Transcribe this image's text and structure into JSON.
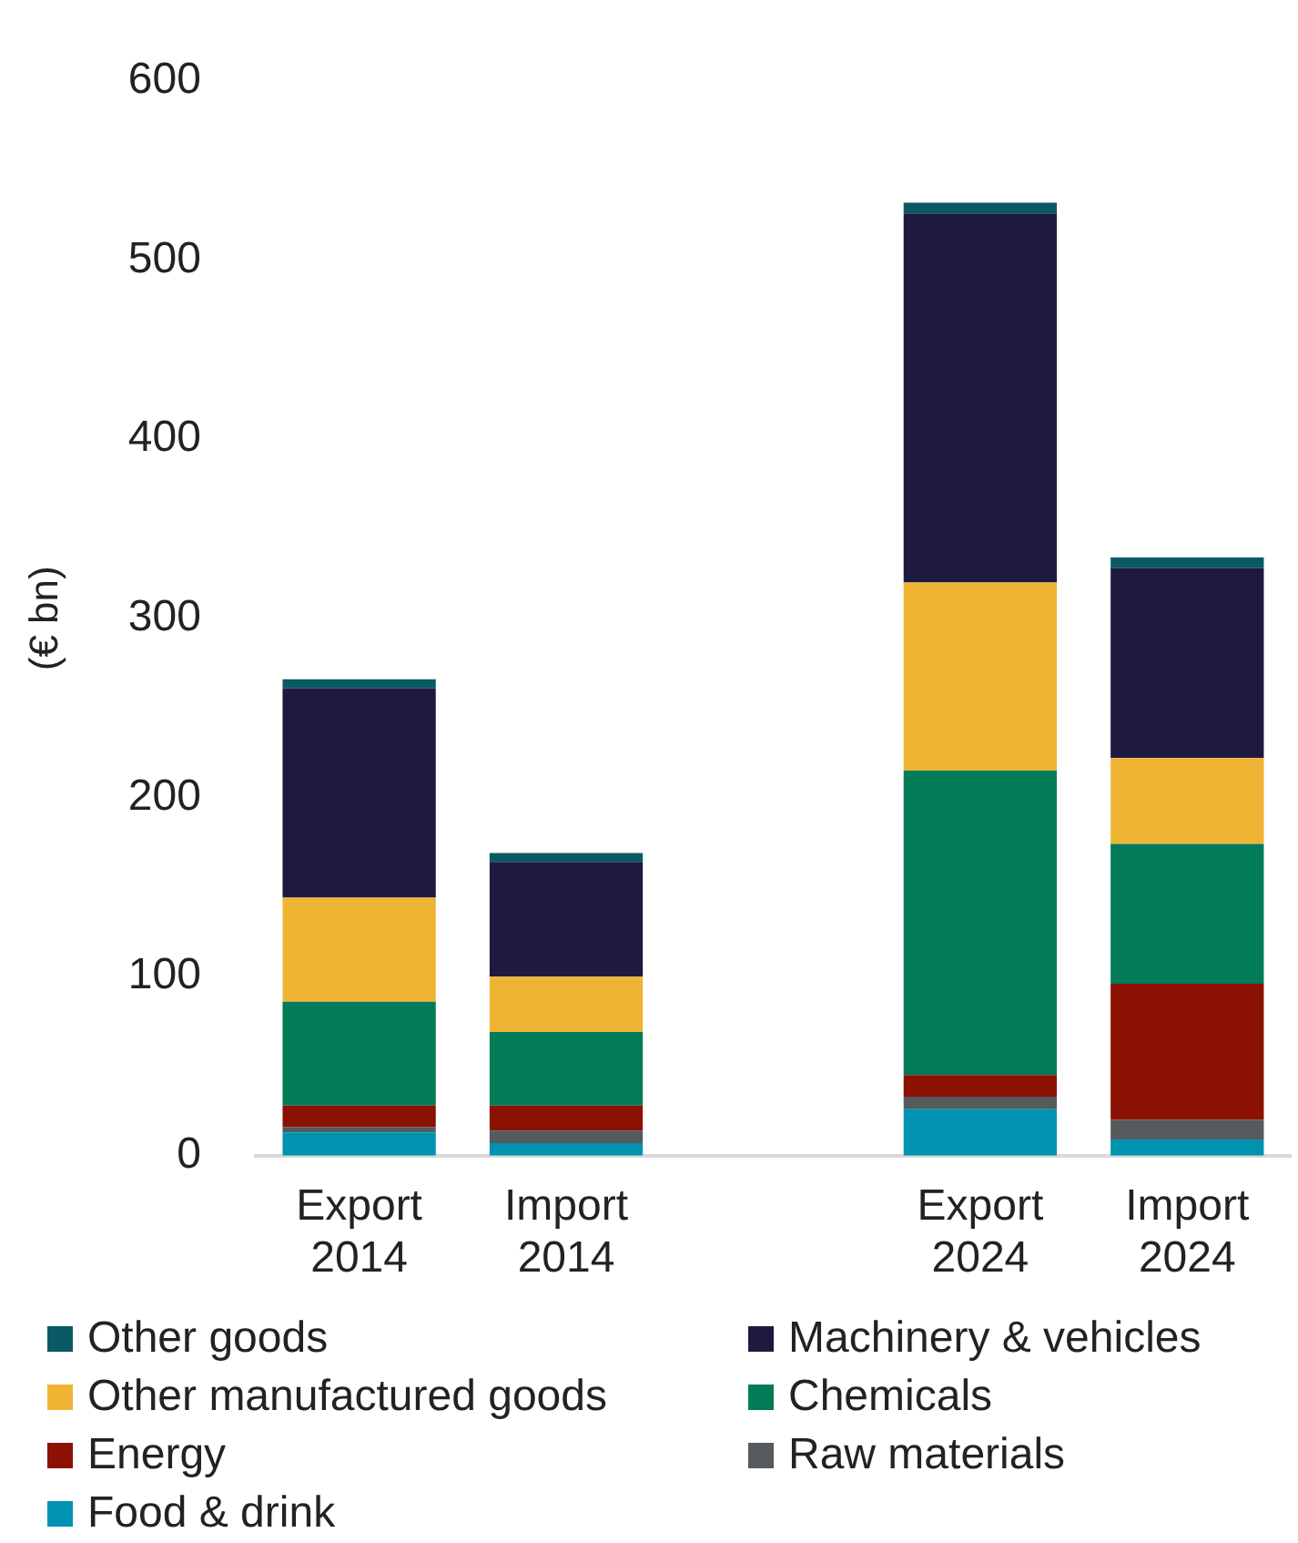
{
  "chart_data": {
    "type": "bar",
    "stacked": true,
    "ylabel": "(€ bn)",
    "categories": [
      "Export 2014",
      "Import 2014",
      null,
      "Export 2024",
      "Import 2024"
    ],
    "ylim": [
      0,
      600
    ],
    "yticks": [
      0,
      100,
      200,
      300,
      400,
      500,
      600
    ],
    "grid": false,
    "legend": "bottom",
    "series": [
      {
        "name": "Food & drink",
        "color": "#0092b0",
        "values": [
          13,
          7,
          null,
          26,
          9
        ]
      },
      {
        "name": "Raw materials",
        "color": "#555a5c",
        "values": [
          3,
          7,
          null,
          7,
          11
        ]
      },
      {
        "name": "Energy",
        "color": "#8b1102",
        "values": [
          12,
          14,
          null,
          12,
          76
        ]
      },
      {
        "name": "Chemicals",
        "color": "#027b58",
        "values": [
          58,
          41,
          null,
          170,
          78
        ]
      },
      {
        "name": "Other manufactured goods",
        "color": "#f0b435",
        "values": [
          58,
          31,
          null,
          105,
          48
        ]
      },
      {
        "name": "Machinery & vehicles",
        "color": "#1e1a3f",
        "values": [
          117,
          64,
          null,
          206,
          106
        ]
      },
      {
        "name": "Other goods",
        "color": "#0a5a66",
        "values": [
          5,
          5,
          null,
          6,
          6
        ]
      }
    ]
  }
}
